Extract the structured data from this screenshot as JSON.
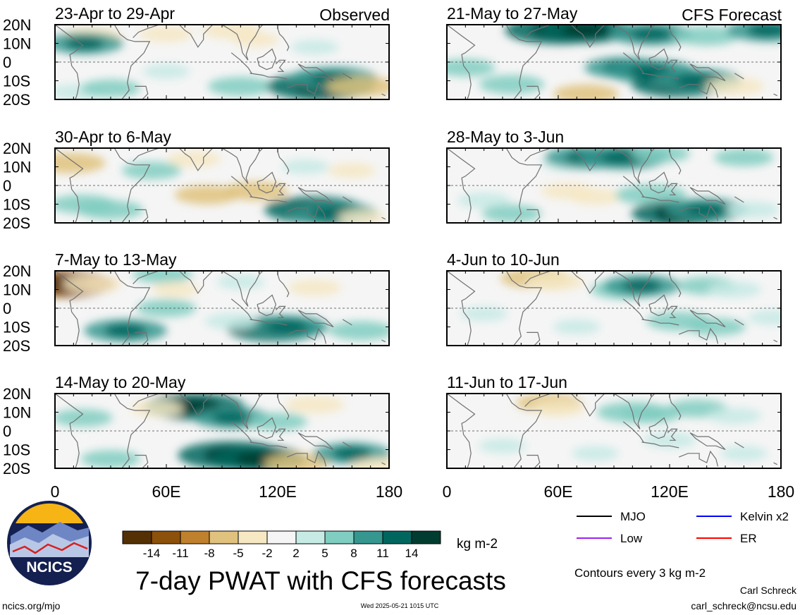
{
  "figure": {
    "title": "7-day PWAT with CFS forecasts",
    "column_tags": {
      "left": "Observed",
      "right": "CFS Forecast"
    },
    "units": "kg m-2",
    "contour_note": "Contours every 3 kg m-2",
    "author": "Carl Schreck",
    "email": "carl_schreck@ncsu.edu",
    "website": "ncics.org/mjo",
    "timestamp": "Wed 2025-05-21 1015 UTC",
    "logo_text": "NCICS"
  },
  "chart_data": {
    "type": "heatmap",
    "variable": "7-day precipitable water (PWAT) anomaly",
    "units": "kg m-2",
    "x_axis": {
      "ticks": [
        0,
        60,
        120,
        180
      ],
      "tick_labels": [
        "0",
        "60E",
        "120E",
        "180"
      ],
      "range": [
        0,
        180
      ]
    },
    "y_axis": {
      "ticks": [
        20,
        10,
        0,
        -10,
        -20
      ],
      "tick_labels": [
        "20N",
        "10N",
        "0",
        "10S",
        "20S"
      ],
      "range": [
        -20,
        20
      ]
    },
    "colorbar": {
      "boundaries": [
        -14,
        -11,
        -8,
        -5,
        -2,
        2,
        5,
        8,
        11,
        14
      ],
      "tick_labels": [
        "-14",
        "-11",
        "-8",
        "-5",
        "-2",
        "2",
        "5",
        "8",
        "11",
        "14"
      ],
      "colors": [
        "#543005",
        "#8c510a",
        "#bf812d",
        "#dfc27d",
        "#f6e8c3",
        "#f5f5f5",
        "#c7eae5",
        "#80cdc1",
        "#35978f",
        "#01665e",
        "#003c30"
      ]
    },
    "legend": [
      {
        "label": "MJO",
        "color": "#000000"
      },
      {
        "label": "Kelvin x2",
        "color": "#0000ff"
      },
      {
        "label": "Low",
        "color": "#a020f0"
      },
      {
        "label": "ER",
        "color": "#ff0000"
      }
    ],
    "panels": [
      {
        "label": "23-Apr to 29-Apr",
        "source": "Observed",
        "blobs": [
          [
            20,
            14,
            -5
          ],
          [
            60,
            15,
            -4
          ],
          [
            95,
            17,
            -5
          ],
          [
            108,
            12,
            -3
          ],
          [
            140,
            8,
            3
          ],
          [
            100,
            -13,
            6
          ],
          [
            143,
            -13,
            13
          ],
          [
            150,
            -9,
            10
          ],
          [
            12,
            -16,
            4
          ],
          [
            30,
            -14,
            5
          ],
          [
            16,
            10,
            8
          ],
          [
            165,
            -13,
            -7
          ],
          [
            60,
            -5,
            3
          ]
        ]
      },
      {
        "label": "30-Apr to 6-May",
        "source": "Observed",
        "blobs": [
          [
            8,
            12,
            -7
          ],
          [
            52,
            8,
            5
          ],
          [
            75,
            14,
            -4
          ],
          [
            135,
            10,
            3
          ],
          [
            160,
            8,
            -3
          ],
          [
            82,
            -5,
            -6
          ],
          [
            108,
            -3,
            -6
          ],
          [
            140,
            -13,
            12
          ],
          [
            150,
            -15,
            10
          ],
          [
            30,
            -13,
            6
          ],
          [
            15,
            -10,
            6
          ],
          [
            165,
            -17,
            -3
          ]
        ]
      },
      {
        "label": "7-May to 13-May",
        "source": "Observed",
        "blobs": [
          [
            5,
            13,
            -12
          ],
          [
            20,
            13,
            -5
          ],
          [
            58,
            18,
            5
          ],
          [
            65,
            10,
            -3
          ],
          [
            140,
            11,
            -4
          ],
          [
            118,
            -11,
            11
          ],
          [
            38,
            -12,
            9
          ],
          [
            125,
            -10,
            9
          ],
          [
            165,
            -12,
            6
          ],
          [
            95,
            -7,
            4
          ],
          [
            60,
            0,
            5
          ],
          [
            100,
            14,
            3
          ]
        ]
      },
      {
        "label": "14-May to 20-May",
        "source": "Observed",
        "blobs": [
          [
            75,
            13,
            12
          ],
          [
            95,
            7,
            8
          ],
          [
            140,
            14,
            -5
          ],
          [
            55,
            12,
            -4
          ],
          [
            120,
            5,
            5
          ],
          [
            95,
            -13,
            13
          ],
          [
            110,
            -15,
            11
          ],
          [
            130,
            -17,
            -6
          ],
          [
            160,
            -12,
            8
          ],
          [
            30,
            -15,
            5
          ],
          [
            15,
            7,
            5
          ],
          [
            175,
            -19,
            -5
          ]
        ]
      },
      {
        "label": "21-May to 27-May",
        "source": "CFS Forecast",
        "blobs": [
          [
            60,
            17,
            13
          ],
          [
            75,
            17,
            11
          ],
          [
            110,
            15,
            9
          ],
          [
            140,
            14,
            6
          ],
          [
            173,
            17,
            9
          ],
          [
            95,
            -3,
            8
          ],
          [
            110,
            -5,
            10
          ],
          [
            125,
            -12,
            11
          ],
          [
            135,
            -10,
            10
          ],
          [
            75,
            -17,
            -6
          ],
          [
            155,
            -13,
            -5
          ],
          [
            10,
            -3,
            5
          ],
          [
            35,
            -12,
            6
          ]
        ]
      },
      {
        "label": "28-May to 3-Jun",
        "source": "CFS Forecast",
        "blobs": [
          [
            65,
            12,
            4
          ],
          [
            75,
            15,
            9
          ],
          [
            95,
            15,
            10
          ],
          [
            115,
            17,
            5
          ],
          [
            160,
            15,
            5
          ],
          [
            65,
            -3,
            -4
          ],
          [
            80,
            -6,
            -4
          ],
          [
            110,
            -5,
            7
          ],
          [
            125,
            -15,
            11
          ],
          [
            140,
            -13,
            9
          ],
          [
            20,
            -8,
            4
          ],
          [
            35,
            -15,
            5
          ],
          [
            165,
            -13,
            4
          ]
        ]
      },
      {
        "label": "4-Jun to 10-Jun",
        "source": "CFS Forecast",
        "blobs": [
          [
            48,
            16,
            -7
          ],
          [
            58,
            14,
            -5
          ],
          [
            95,
            10,
            6
          ],
          [
            105,
            12,
            8
          ],
          [
            140,
            12,
            5
          ],
          [
            155,
            10,
            4
          ],
          [
            125,
            -7,
            6
          ],
          [
            145,
            -10,
            5
          ],
          [
            20,
            -3,
            3
          ],
          [
            70,
            -10,
            3
          ],
          [
            175,
            -5,
            3
          ]
        ]
      },
      {
        "label": "11-Jun to 17-Jun",
        "source": "CFS Forecast",
        "blobs": [
          [
            55,
            15,
            -6
          ],
          [
            60,
            12,
            -4
          ],
          [
            100,
            10,
            7
          ],
          [
            110,
            9,
            5
          ],
          [
            135,
            12,
            5
          ],
          [
            155,
            8,
            4
          ],
          [
            120,
            -5,
            4
          ],
          [
            30,
            -8,
            3
          ],
          [
            80,
            -12,
            3
          ],
          [
            160,
            -12,
            3
          ]
        ]
      }
    ]
  }
}
